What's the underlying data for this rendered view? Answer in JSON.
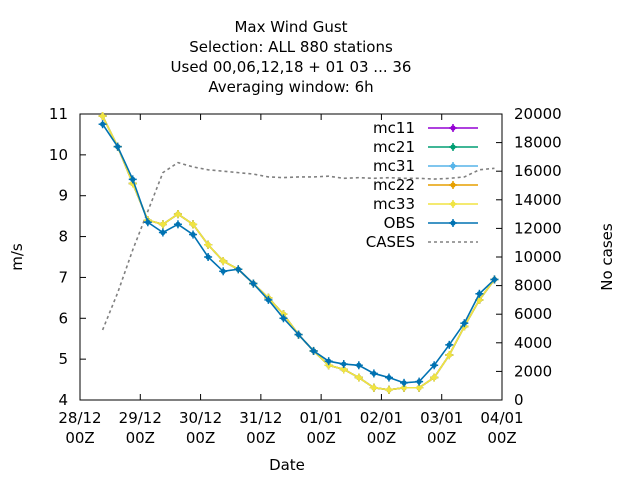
{
  "chart_data": {
    "type": "line",
    "title_lines": [
      "Max Wind Gust",
      "Selection: ALL    880 stations",
      "Used  00,06,12,18  + 01 03 ... 36",
      "Averaging window:  6h"
    ],
    "xlabel": "Date",
    "ylabel": "m/s",
    "y2label": "No cases",
    "ylim": [
      4,
      11
    ],
    "y2lim": [
      0,
      20000
    ],
    "yticks": [
      4,
      5,
      6,
      7,
      8,
      9,
      10,
      11
    ],
    "y2ticks": [
      0,
      2000,
      4000,
      6000,
      8000,
      10000,
      12000,
      14000,
      16000,
      18000,
      20000
    ],
    "xlim_days": [
      0,
      7
    ],
    "xticks": [
      {
        "day": 0,
        "line1": "28/12",
        "line2": "00Z"
      },
      {
        "day": 1,
        "line1": "29/12",
        "line2": "00Z"
      },
      {
        "day": 2,
        "line1": "30/12",
        "line2": "00Z"
      },
      {
        "day": 3,
        "line1": "31/12",
        "line2": "00Z"
      },
      {
        "day": 4,
        "line1": "01/01",
        "line2": "00Z"
      },
      {
        "day": 5,
        "line1": "02/01",
        "line2": "00Z"
      },
      {
        "day": 6,
        "line1": "03/01",
        "line2": "00Z"
      },
      {
        "day": 7,
        "line1": "04/01",
        "line2": "00Z"
      }
    ],
    "x_days": [
      0.375,
      0.625,
      0.875,
      1.125,
      1.375,
      1.625,
      1.875,
      2.125,
      2.375,
      2.625,
      2.875,
      3.125,
      3.375,
      3.625,
      3.875,
      4.125,
      4.375,
      4.625,
      4.875,
      5.125,
      5.375,
      5.625,
      5.875,
      6.125,
      6.375,
      6.625,
      6.875
    ],
    "series": [
      {
        "name": "mc11",
        "color": "#9400d3",
        "values": [
          10.95,
          10.2,
          9.3,
          8.4,
          8.3,
          8.55,
          8.3,
          7.8,
          7.4,
          7.2,
          6.85,
          6.5,
          6.1,
          5.6,
          5.2,
          4.85,
          4.75,
          4.55,
          4.3,
          4.25,
          4.3,
          4.3,
          4.55,
          5.1,
          5.8,
          6.45,
          6.95
        ]
      },
      {
        "name": "mc21",
        "color": "#009e73",
        "values": [
          10.95,
          10.2,
          9.3,
          8.4,
          8.3,
          8.55,
          8.3,
          7.8,
          7.4,
          7.2,
          6.85,
          6.5,
          6.1,
          5.6,
          5.2,
          4.85,
          4.75,
          4.55,
          4.3,
          4.25,
          4.3,
          4.3,
          4.55,
          5.1,
          5.8,
          6.45,
          6.95
        ]
      },
      {
        "name": "mc31",
        "color": "#56b4e9",
        "values": [
          10.95,
          10.2,
          9.3,
          8.4,
          8.3,
          8.55,
          8.3,
          7.8,
          7.4,
          7.2,
          6.85,
          6.5,
          6.1,
          5.6,
          5.2,
          4.85,
          4.75,
          4.55,
          4.3,
          4.25,
          4.3,
          4.3,
          4.55,
          5.1,
          5.8,
          6.45,
          6.95
        ]
      },
      {
        "name": "mc22",
        "color": "#e69f00",
        "values": [
          10.95,
          10.2,
          9.3,
          8.4,
          8.3,
          8.55,
          8.3,
          7.8,
          7.4,
          7.2,
          6.85,
          6.5,
          6.1,
          5.6,
          5.2,
          4.85,
          4.75,
          4.55,
          4.3,
          4.25,
          4.3,
          4.3,
          4.55,
          5.1,
          5.8,
          6.45,
          6.95
        ]
      },
      {
        "name": "mc33",
        "color": "#f0e442",
        "values": [
          10.95,
          10.2,
          9.3,
          8.4,
          8.3,
          8.55,
          8.3,
          7.8,
          7.4,
          7.2,
          6.85,
          6.5,
          6.1,
          5.6,
          5.2,
          4.85,
          4.75,
          4.55,
          4.3,
          4.25,
          4.3,
          4.3,
          4.55,
          5.1,
          5.8,
          6.45,
          6.95
        ]
      },
      {
        "name": "OBS",
        "color": "#0072b2",
        "values": [
          10.75,
          10.2,
          9.4,
          8.35,
          8.1,
          8.3,
          8.05,
          7.5,
          7.15,
          7.2,
          6.85,
          6.45,
          6.0,
          5.6,
          5.2,
          4.95,
          4.88,
          4.85,
          4.65,
          4.55,
          4.42,
          4.45,
          4.85,
          5.35,
          5.88,
          6.6,
          6.95
        ]
      }
    ],
    "cases": {
      "name": "CASES",
      "color": "#808080",
      "axis": "y2",
      "x_days": [
        0.375,
        0.625,
        0.875,
        1.125,
        1.375,
        1.625,
        1.875,
        2.125,
        2.375,
        2.625,
        2.875,
        3.125,
        3.375,
        3.625,
        3.875,
        4.125,
        4.375,
        4.625,
        4.875,
        5.125,
        5.375,
        5.625,
        5.875,
        6.125,
        6.375,
        6.625,
        6.875
      ],
      "values": [
        4900,
        7500,
        10500,
        13200,
        15900,
        16600,
        16300,
        16100,
        16000,
        15900,
        15800,
        15600,
        15550,
        15600,
        15600,
        15650,
        15500,
        15550,
        15500,
        15550,
        15500,
        15500,
        15450,
        15500,
        15600,
        16100,
        16200
      ]
    },
    "legend_position": "top-right",
    "grid": false
  }
}
